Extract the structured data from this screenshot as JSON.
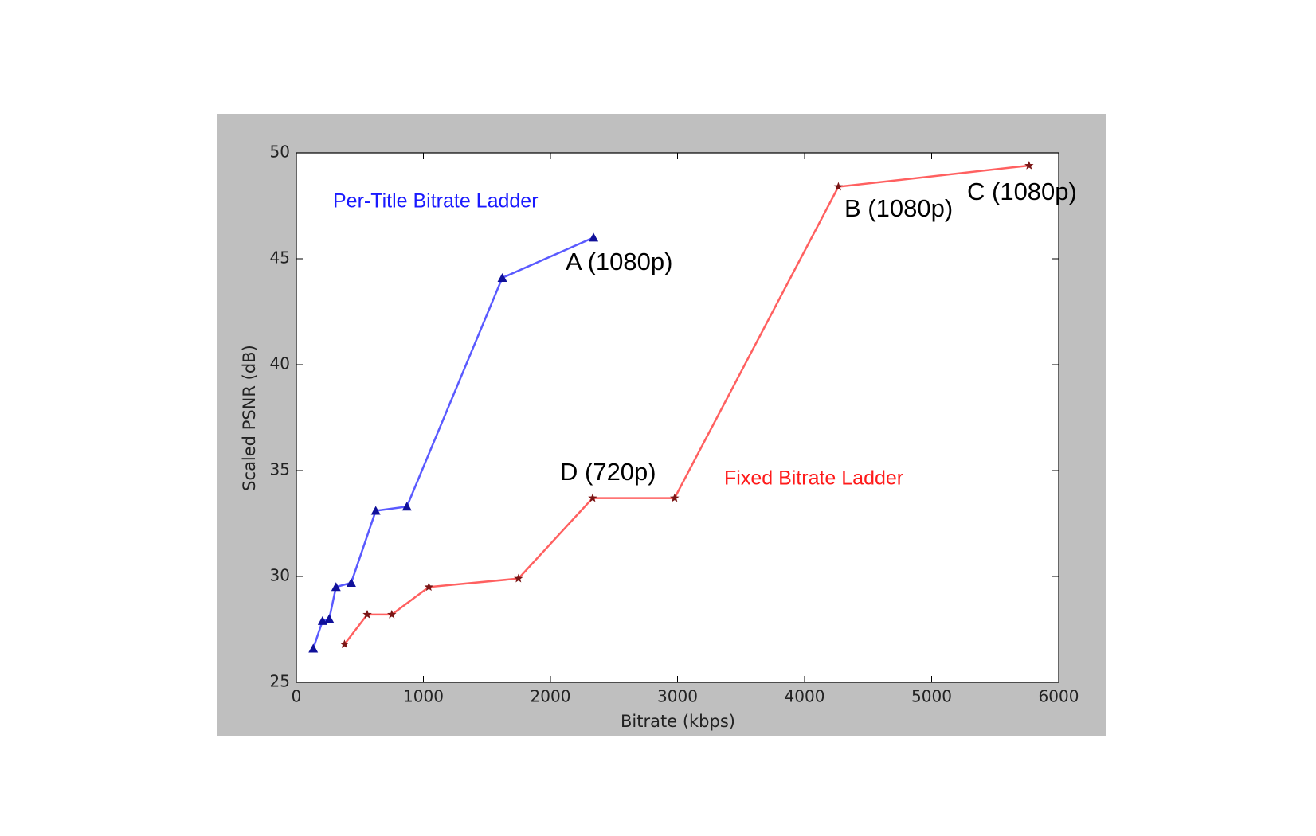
{
  "chart_data": {
    "type": "line",
    "x_label": "Bitrate (kbps)",
    "y_label": "Scaled PSNR (dB)",
    "xlim": [
      0,
      6000
    ],
    "xticks": [
      0,
      1000,
      2000,
      3000,
      4000,
      5000,
      6000
    ],
    "ylim": [
      25,
      50
    ],
    "yticks": [
      25,
      30,
      35,
      40,
      45,
      50
    ],
    "grid": false,
    "series": [
      {
        "name": "Per-Title Bitrate Ladder",
        "color": "#5a5aff",
        "marker_color": "#10109a",
        "marker": "triangle",
        "x": [
          133,
          206,
          259,
          312,
          432,
          625,
          870,
          1621,
          2339
        ],
        "values": [
          26.6,
          27.9,
          28.0,
          29.5,
          29.7,
          33.1,
          33.3,
          44.1,
          46.0
        ]
      },
      {
        "name": "Fixed Bitrate Ladder",
        "color": "#ff6060",
        "marker_color": "#7a1515",
        "marker": "star",
        "x": [
          379,
          558,
          751,
          1043,
          1748,
          2332,
          2977,
          4266,
          5767
        ],
        "values": [
          26.8,
          28.2,
          28.2,
          29.5,
          29.9,
          33.7,
          33.7,
          48.4,
          49.4
        ]
      }
    ],
    "annotations": [
      "A (1080p)",
      "B (1080p)",
      "C (1080p)",
      "D (720p)"
    ]
  }
}
